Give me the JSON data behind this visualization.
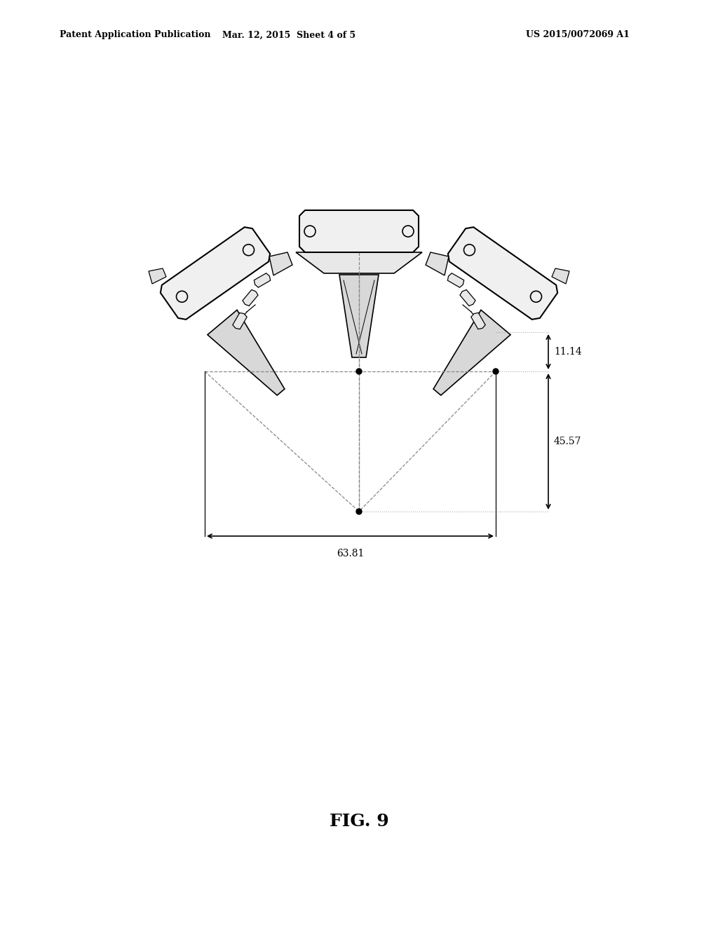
{
  "background_color": "#ffffff",
  "header_left": "Patent Application Publication",
  "header_center": "Mar. 12, 2015  Sheet 4 of 5",
  "header_right": "US 2015/0072069 A1",
  "figure_label": "FIG. 9",
  "dim_11_14": "11.14",
  "dim_45_57": "45.57",
  "dim_63_81": "63.81",
  "line_color": "#000000",
  "dim_color": "#000000",
  "dash_color": "#888888"
}
